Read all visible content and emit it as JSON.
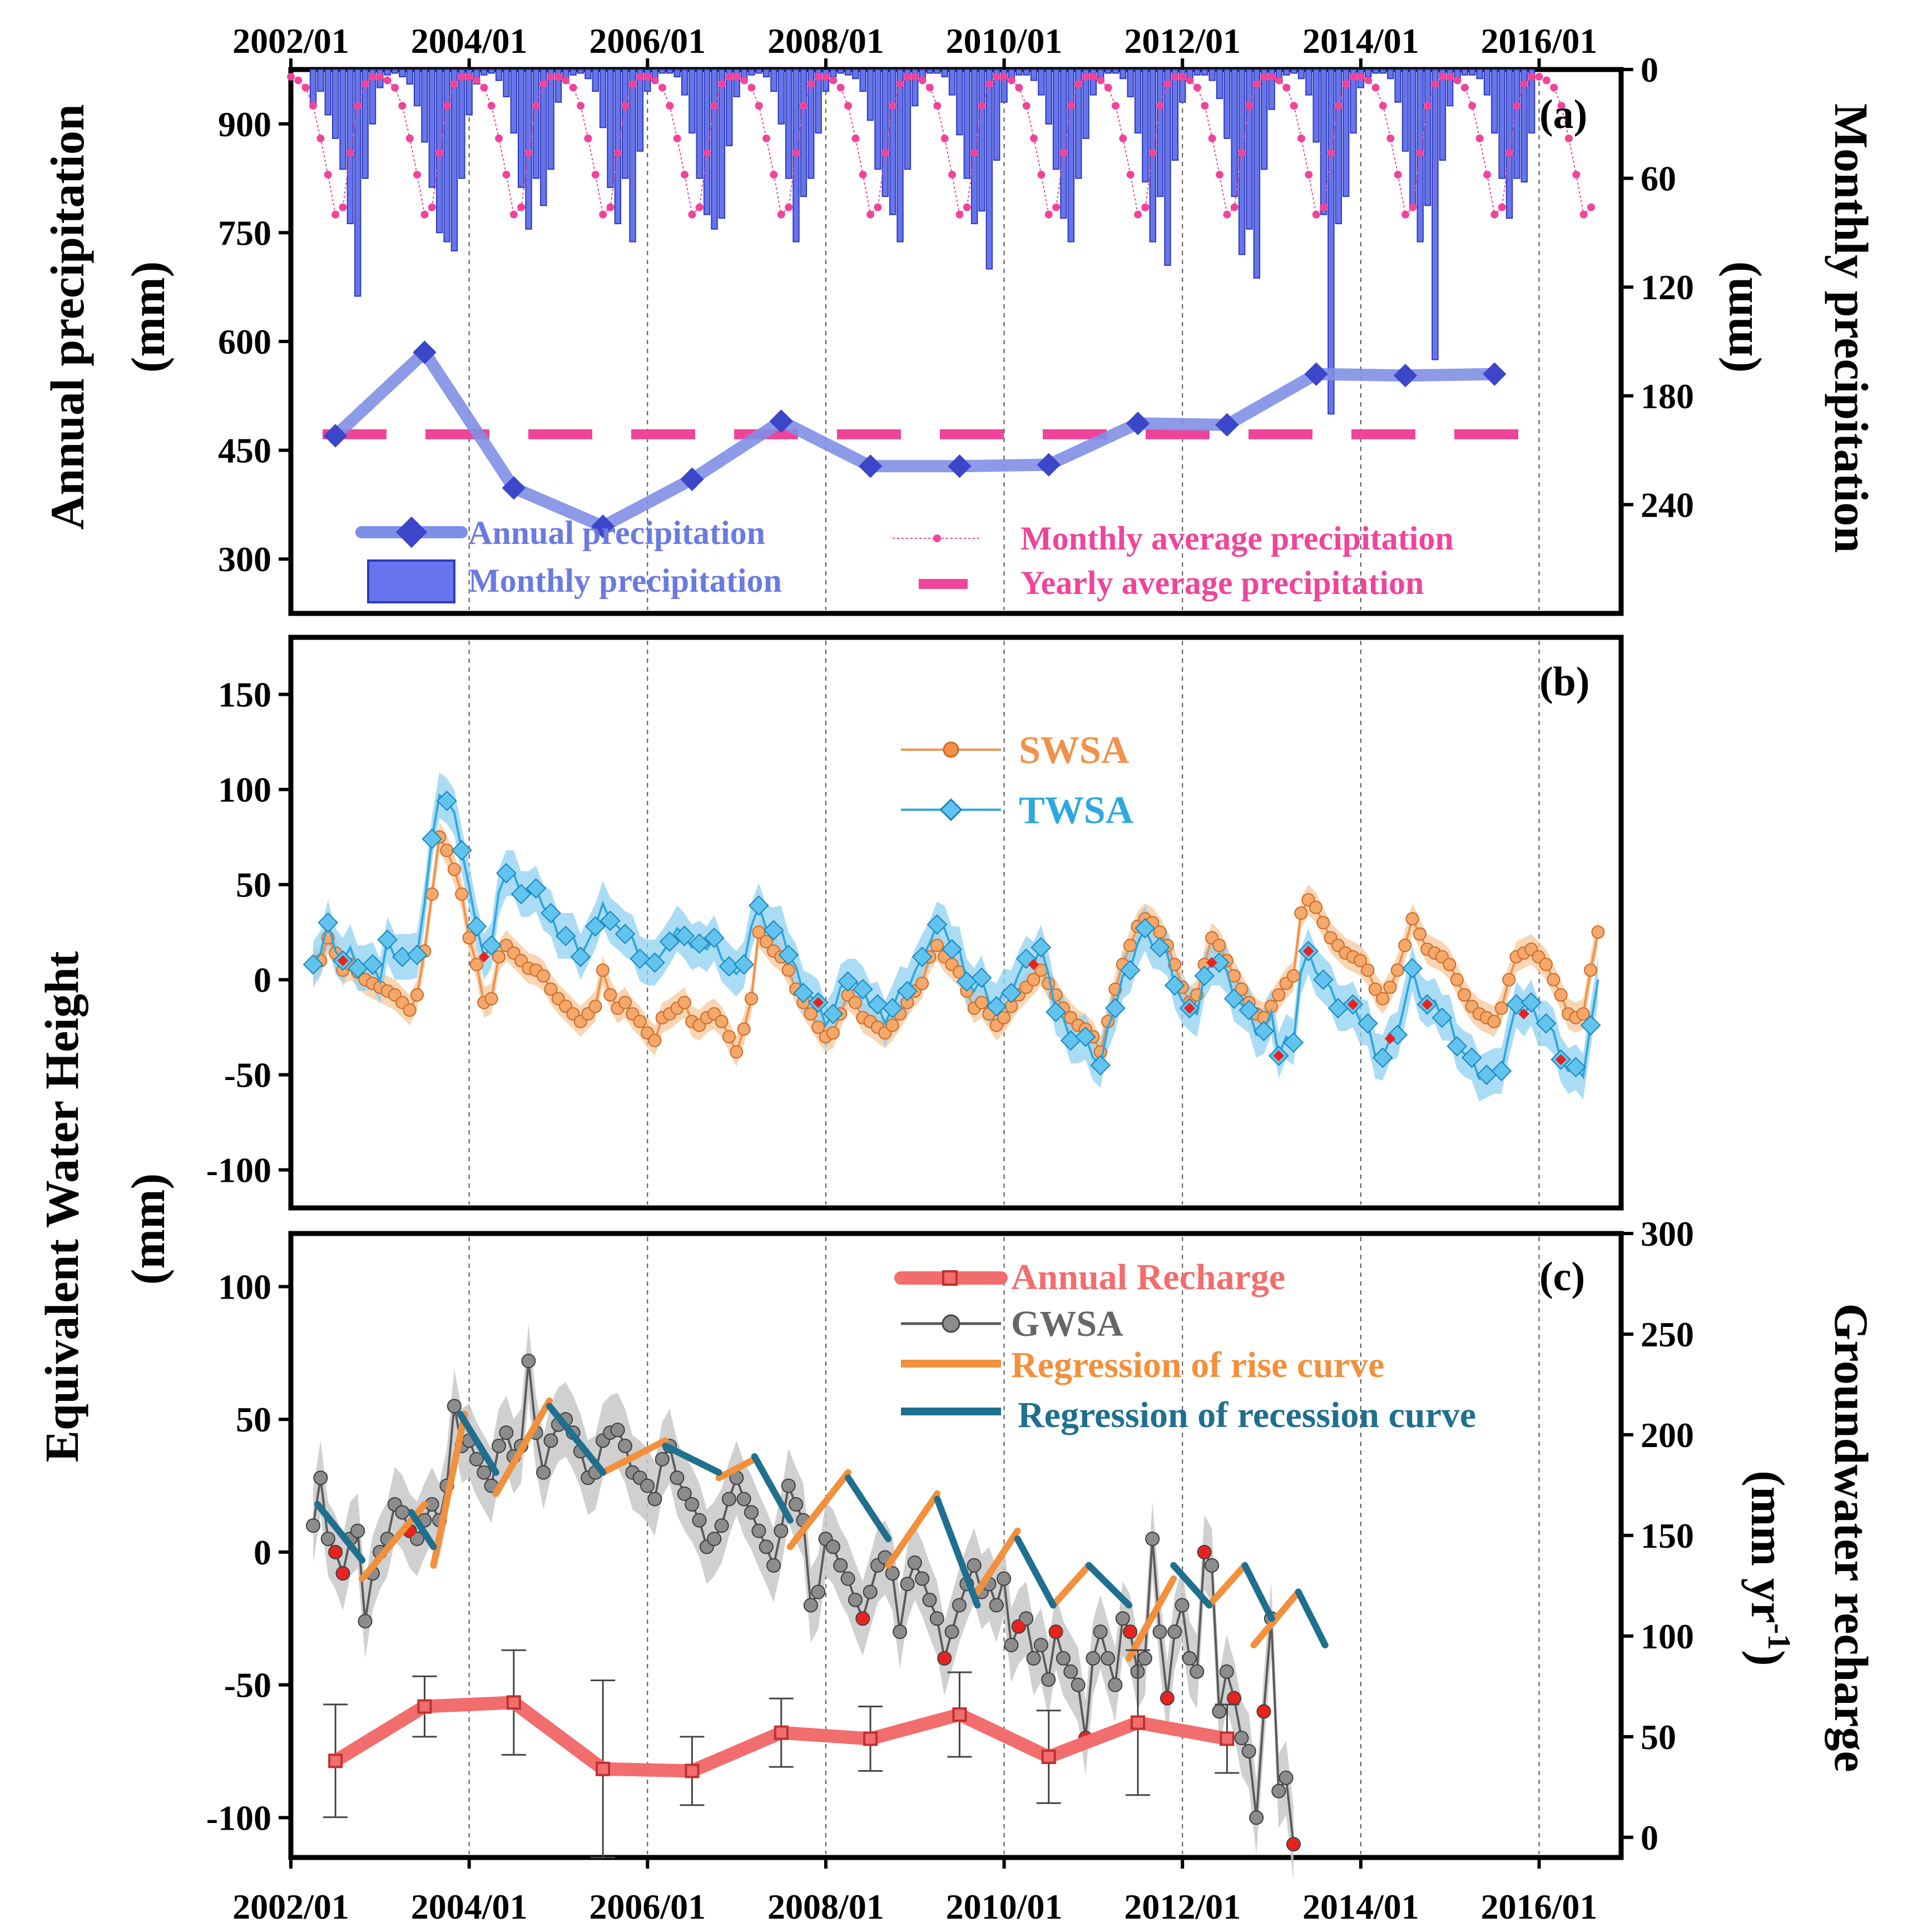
{
  "chart_data": [
    {
      "id": "a",
      "type": "bar+line",
      "panel_label": "(a)",
      "ylabel_left": "Annual precipitation",
      "ylabel_left_unit": "(mm)",
      "ylabel_right": "Monthly precipitation",
      "ylabel_right_unit": "(mm)",
      "ylim_left": [
        225,
        975
      ],
      "yticks_left": [
        300,
        450,
        600,
        750,
        900
      ],
      "ylim_right_inverted": [
        0,
        300
      ],
      "yticks_right": [
        0,
        60,
        120,
        180,
        240
      ],
      "x_ticks_top": [
        "2002/01",
        "2004/01",
        "2006/01",
        "2008/01",
        "2010/01",
        "2012/01",
        "2014/01",
        "2016/01"
      ],
      "legend": {
        "annual": "Annual precipitation",
        "monthly": "Monthly precipitation",
        "monthly_avg": "Monthly average precipitation",
        "yearly_avg": "Yearly average precipitation"
      },
      "colors": {
        "annual": "#7f8fe6",
        "annual_marker": "#3b46c9",
        "bar": "#6675ee",
        "bar_edge": "#2e3ab5",
        "avg": "#f0449a"
      },
      "monthly_avg_cycle_mm": [
        4,
        6,
        10,
        20,
        38,
        58,
        80,
        76,
        46,
        20,
        8,
        4
      ],
      "monthly_series": {
        "start": "2002/04",
        "values": [
          20,
          12,
          25,
          38,
          55,
          85,
          125,
          60,
          30,
          10,
          3,
          2,
          4,
          8,
          20,
          40,
          65,
          90,
          95,
          100,
          60,
          25,
          8,
          3,
          2,
          6,
          15,
          35,
          65,
          88,
          60,
          75,
          55,
          18,
          6,
          3,
          2,
          5,
          12,
          32,
          65,
          85,
          60,
          95,
          45,
          12,
          5,
          2,
          2,
          4,
          14,
          35,
          60,
          80,
          88,
          82,
          42,
          15,
          5,
          3,
          2,
          4,
          12,
          30,
          60,
          95,
          70,
          60,
          35,
          12,
          4,
          2,
          3,
          5,
          12,
          28,
          55,
          70,
          80,
          95,
          55,
          20,
          5,
          2,
          2,
          4,
          14,
          36,
          60,
          85,
          78,
          110,
          50,
          18,
          6,
          3,
          3,
          6,
          14,
          30,
          55,
          82,
          95,
          60,
          38,
          14,
          5,
          2,
          2,
          5,
          15,
          35,
          62,
          95,
          70,
          108,
          50,
          18,
          6,
          3,
          3,
          6,
          16,
          38,
          70,
          102,
          88,
          115,
          55,
          22,
          7,
          3,
          2,
          5,
          14,
          40,
          80,
          190,
          85,
          70,
          35,
          10,
          4,
          2,
          2,
          5,
          18,
          45,
          75,
          95,
          75,
          160,
          50,
          20,
          6,
          3,
          3,
          5,
          14,
          35,
          60,
          82,
          60,
          62,
          35
        ]
      },
      "annual_series": [
        {
          "x": 2002.5,
          "y": 470
        },
        {
          "x": 2003.5,
          "y": 585
        },
        {
          "x": 2004.5,
          "y": 398
        },
        {
          "x": 2005.5,
          "y": 345
        },
        {
          "x": 2006.5,
          "y": 410
        },
        {
          "x": 2007.5,
          "y": 490
        },
        {
          "x": 2008.5,
          "y": 428
        },
        {
          "x": 2009.5,
          "y": 428
        },
        {
          "x": 2010.5,
          "y": 430
        },
        {
          "x": 2011.5,
          "y": 487
        },
        {
          "x": 2012.5,
          "y": 485
        },
        {
          "x": 2013.5,
          "y": 555
        },
        {
          "x": 2014.5,
          "y": 553
        },
        {
          "x": 2015.5,
          "y": 555
        }
      ],
      "yearly_average_mm": 472
    },
    {
      "id": "b",
      "type": "line",
      "panel_label": "(b)",
      "ylabel": "Equivalent Water Height",
      "ylabel_unit": "(mm)",
      "ylim": [
        -120,
        180
      ],
      "yticks": [
        -100,
        -50,
        0,
        50,
        100,
        150
      ],
      "legend": {
        "swsa": "SWSA",
        "twsa": "TWSA"
      },
      "colors": {
        "swsa": "#f2914a",
        "swsa_band": "#f7c79a",
        "twsa": "#2ea8e0",
        "twsa_band": "#8fd0f2",
        "missing": "#e8221f"
      },
      "x_start": 2002.25,
      "x_step": 0.0833,
      "swsa": [
        8,
        10,
        22,
        14,
        5,
        8,
        4,
        0,
        -2,
        -4,
        -6,
        -8,
        -12,
        -16,
        -8,
        15,
        45,
        75,
        68,
        58,
        45,
        22,
        8,
        -12,
        -10,
        12,
        18,
        14,
        10,
        6,
        5,
        2,
        -5,
        -10,
        -14,
        -18,
        -22,
        -18,
        -14,
        5,
        -8,
        -15,
        -12,
        -18,
        -22,
        -28,
        -32,
        -20,
        -18,
        -15,
        -12,
        -22,
        -24,
        -20,
        -18,
        -22,
        -30,
        -38,
        -26,
        -10,
        25,
        20,
        15,
        12,
        5,
        -5,
        -12,
        -18,
        -25,
        -30,
        -28,
        -18,
        -8,
        -12,
        -20,
        -22,
        -25,
        -28,
        -24,
        -18,
        -12,
        -6,
        -2,
        12,
        18,
        12,
        8,
        4,
        -6,
        -15,
        -12,
        -18,
        -24,
        -20,
        -14,
        -8,
        -4,
        0,
        5,
        -2,
        -8,
        -15,
        -20,
        -24,
        -26,
        -30,
        -38,
        -22,
        -5,
        8,
        18,
        28,
        32,
        30,
        25,
        18,
        8,
        -4,
        -12,
        -8,
        8,
        22,
        18,
        10,
        2,
        -5,
        -12,
        -18,
        -20,
        -14,
        -8,
        -2,
        2,
        35,
        42,
        38,
        30,
        22,
        18,
        14,
        12,
        10,
        5,
        -5,
        -10,
        -4,
        5,
        18,
        32,
        24,
        16,
        14,
        12,
        8,
        0,
        -8,
        -14,
        -18,
        -20,
        -22,
        -15,
        0,
        12,
        14,
        16,
        12,
        8,
        0,
        -8,
        -18,
        -20,
        -18,
        5,
        25
      ]
    },
    {
      "id": "c",
      "type": "line+error_bars",
      "panel_label": "(c)",
      "ylabel_right": "Groundwater recharge",
      "ylabel_right_unit": "(mm yr",
      "ylabel_right_unit_sup": "-1",
      "ylabel_right_unit_close": ")",
      "ylim_left": [
        -115,
        120
      ],
      "yticks_left": [
        -100,
        -50,
        0,
        50,
        100
      ],
      "ylim_right": [
        -10,
        300
      ],
      "yticks_right": [
        0,
        50,
        100,
        150,
        200,
        250,
        300
      ],
      "x_ticks_bottom": [
        "2002/01",
        "2004/01",
        "2006/01",
        "2008/01",
        "2010/01",
        "2012/01",
        "2014/01",
        "2016/01"
      ],
      "legend": {
        "recharge": "Annual Recharge",
        "gwsa": "GWSA",
        "rise": "Regression of rise curve",
        "recession": "Regression of recession curve"
      },
      "colors": {
        "recharge": "#f26d6d",
        "gwsa": "#5a5a5a",
        "gwsa_marker": "#8c8c8c",
        "band": "#c8c8c8",
        "rise": "#f2903c",
        "recession": "#1f6f8f",
        "missing": "#e8221f"
      },
      "gwsa_x_start": 2002.25,
      "gwsa_x_step": 0.0833,
      "gwsa": [
        10,
        28,
        5,
        0,
        -8,
        5,
        8,
        -26,
        -8,
        0,
        5,
        18,
        15,
        8,
        5,
        12,
        18,
        12,
        25,
        55,
        40,
        42,
        35,
        30,
        25,
        40,
        45,
        36,
        40,
        72,
        45,
        30,
        42,
        48,
        50,
        45,
        38,
        28,
        30,
        42,
        45,
        46,
        40,
        30,
        28,
        25,
        20,
        35,
        40,
        28,
        22,
        18,
        12,
        2,
        5,
        10,
        20,
        28,
        20,
        15,
        8,
        2,
        -5,
        8,
        25,
        18,
        12,
        -20,
        -15,
        5,
        2,
        -5,
        -10,
        -18,
        -25,
        -15,
        -5,
        -2,
        -8,
        -30,
        -12,
        -4,
        -10,
        -18,
        -25,
        -40,
        -30,
        -20,
        -12,
        -5,
        -15,
        -12,
        -20,
        -10,
        -35,
        -28,
        -25,
        -40,
        -35,
        -48,
        -30,
        -40,
        -45,
        -50,
        -70,
        -40,
        -30,
        -40,
        -50,
        -25,
        -30,
        -45,
        -40,
        5,
        -30,
        -55,
        -30,
        -20,
        -40,
        -45,
        0,
        -5,
        -60,
        -45,
        -55,
        -70,
        -75,
        -100,
        -60,
        -25,
        -90,
        -85,
        -110
      ],
      "rise_segments": [
        [
          2002.8,
          -10,
          2003.5,
          18
        ],
        [
          2003.6,
          -5,
          2003.95,
          52
        ],
        [
          2004.3,
          22,
          2004.9,
          57
        ],
        [
          2005.5,
          30,
          2006.2,
          42
        ],
        [
          2006.8,
          28,
          2007.2,
          35
        ],
        [
          2007.6,
          2,
          2008.25,
          30
        ],
        [
          2008.7,
          -5,
          2009.25,
          22
        ],
        [
          2009.7,
          -15,
          2010.15,
          8
        ],
        [
          2010.55,
          -20,
          2010.95,
          -5
        ],
        [
          2011.4,
          -40,
          2011.9,
          -10
        ],
        [
          2012.3,
          -20,
          2012.7,
          -5
        ],
        [
          2012.8,
          -35,
          2013.3,
          -15
        ]
      ],
      "recession_segments": [
        [
          2002.3,
          18,
          2002.8,
          -3
        ],
        [
          2003.35,
          15,
          2003.6,
          2
        ],
        [
          2003.9,
          52,
          2004.3,
          30
        ],
        [
          2004.9,
          55,
          2005.5,
          30
        ],
        [
          2006.2,
          40,
          2006.8,
          30
        ],
        [
          2007.2,
          36,
          2007.6,
          12
        ],
        [
          2008.25,
          28,
          2008.7,
          5
        ],
        [
          2009.25,
          20,
          2009.7,
          -20
        ],
        [
          2010.15,
          5,
          2010.55,
          -20
        ],
        [
          2010.95,
          -5,
          2011.4,
          -20
        ],
        [
          2011.9,
          -5,
          2012.3,
          -20
        ],
        [
          2012.7,
          -5,
          2013.0,
          -25
        ],
        [
          2013.3,
          -15,
          2013.6,
          -35
        ]
      ],
      "recharge": [
        {
          "x": 2002.5,
          "y": 38,
          "err": 28
        },
        {
          "x": 2003.5,
          "y": 65,
          "err": 15
        },
        {
          "x": 2004.5,
          "y": 67,
          "err": 26
        },
        {
          "x": 2005.5,
          "y": 34,
          "err": 44
        },
        {
          "x": 2006.5,
          "y": 33,
          "err": 17
        },
        {
          "x": 2007.5,
          "y": 52,
          "err": 17
        },
        {
          "x": 2008.5,
          "y": 49,
          "err": 16
        },
        {
          "x": 2009.5,
          "y": 61,
          "err": 21
        },
        {
          "x": 2010.5,
          "y": 40,
          "err": 23
        },
        {
          "x": 2011.5,
          "y": 57,
          "err": 36
        },
        {
          "x": 2012.5,
          "y": 49,
          "err": 17
        }
      ]
    }
  ]
}
